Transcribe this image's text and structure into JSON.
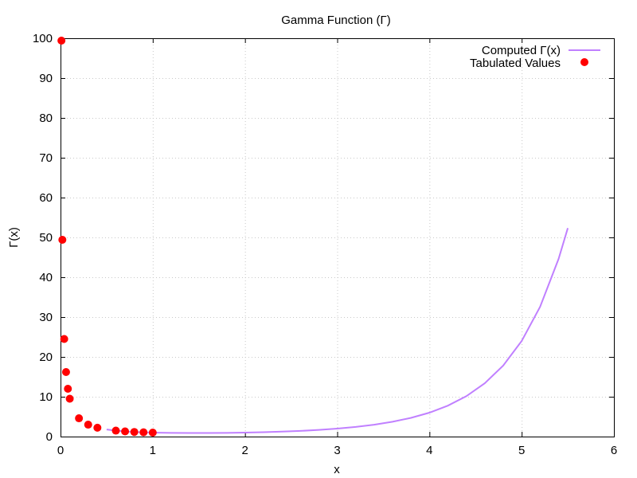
{
  "chart_data": {
    "type": "line",
    "title": "Gamma Function (Γ)",
    "xlabel": "x",
    "ylabel": "Γ(x)",
    "xlim": [
      0,
      6
    ],
    "ylim": [
      0,
      100
    ],
    "xticks": [
      0,
      1,
      2,
      3,
      4,
      5,
      6
    ],
    "yticks": [
      0,
      10,
      20,
      30,
      40,
      50,
      60,
      70,
      80,
      90,
      100
    ],
    "grid": true,
    "legend_position": "top-right",
    "series": [
      {
        "name": "Computed Γ(x)",
        "kind": "line",
        "color": "#c080ff",
        "x": [
          0.5,
          0.6,
          0.7,
          0.8,
          0.9,
          1.0,
          1.2,
          1.4,
          1.5,
          1.6,
          1.8,
          2.0,
          2.2,
          2.4,
          2.6,
          2.8,
          3.0,
          3.2,
          3.4,
          3.6,
          3.8,
          4.0,
          4.2,
          4.4,
          4.6,
          4.8,
          5.0,
          5.2,
          5.4,
          5.5
        ],
        "y": [
          1.77,
          1.49,
          1.3,
          1.16,
          1.07,
          1.0,
          0.92,
          0.89,
          0.89,
          0.89,
          0.93,
          1.0,
          1.1,
          1.24,
          1.43,
          1.68,
          2.0,
          2.42,
          2.98,
          3.72,
          4.69,
          6.0,
          7.76,
          10.14,
          13.38,
          17.84,
          24.0,
          32.58,
          44.6,
          52.34
        ]
      },
      {
        "name": "Tabulated Values",
        "kind": "points",
        "color": "#ff0000",
        "x": [
          0.01,
          0.02,
          0.04,
          0.06,
          0.08,
          0.1,
          0.2,
          0.3,
          0.4,
          0.6,
          0.7,
          0.8,
          0.9,
          1.0
        ],
        "y": [
          99.4,
          49.4,
          24.5,
          16.2,
          12.0,
          9.5,
          4.59,
          2.99,
          2.22,
          1.49,
          1.3,
          1.16,
          1.07,
          1.0
        ]
      }
    ]
  }
}
